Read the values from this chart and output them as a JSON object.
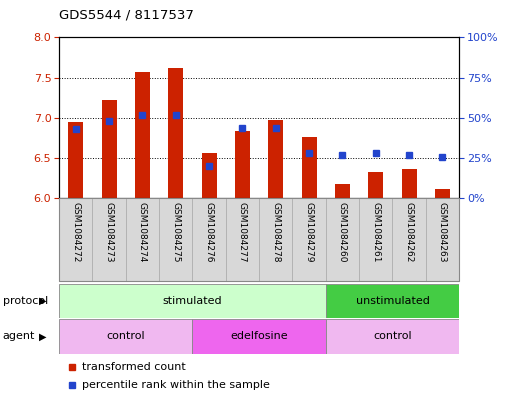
{
  "title": "GDS5544 / 8117537",
  "samples": [
    "GSM1084272",
    "GSM1084273",
    "GSM1084274",
    "GSM1084275",
    "GSM1084276",
    "GSM1084277",
    "GSM1084278",
    "GSM1084279",
    "GSM1084260",
    "GSM1084261",
    "GSM1084262",
    "GSM1084263"
  ],
  "bar_values": [
    6.95,
    7.22,
    7.57,
    7.62,
    6.57,
    6.84,
    6.97,
    6.76,
    6.18,
    6.33,
    6.37,
    6.12
  ],
  "percentile_values": [
    43,
    48,
    52,
    52,
    20,
    44,
    44,
    28,
    27,
    28,
    27,
    26
  ],
  "bar_color": "#cc2200",
  "pct_color": "#2244cc",
  "ylim_left": [
    6.0,
    8.0
  ],
  "ylim_right": [
    0,
    100
  ],
  "yticks_left": [
    6.0,
    6.5,
    7.0,
    7.5,
    8.0
  ],
  "yticks_right": [
    0,
    25,
    50,
    75,
    100
  ],
  "ytick_labels_right": [
    "0%",
    "25%",
    "50%",
    "75%",
    "100%"
  ],
  "bar_bottom": 6.0,
  "protocol_groups": [
    {
      "label": "stimulated",
      "start": 0,
      "end": 8,
      "color": "#ccffcc"
    },
    {
      "label": "unstimulated",
      "start": 8,
      "end": 12,
      "color": "#44cc44"
    }
  ],
  "agent_groups": [
    {
      "label": "control",
      "start": 0,
      "end": 4,
      "color": "#f0b8f0"
    },
    {
      "label": "edelfosine",
      "start": 4,
      "end": 8,
      "color": "#ee66ee"
    },
    {
      "label": "control",
      "start": 8,
      "end": 12,
      "color": "#f0b8f0"
    }
  ],
  "legend_bar_label": "transformed count",
  "legend_pct_label": "percentile rank within the sample",
  "protocol_label": "protocol",
  "agent_label": "agent",
  "bg_color": "#ffffff",
  "plot_bg_color": "#ffffff",
  "bar_width": 0.45
}
